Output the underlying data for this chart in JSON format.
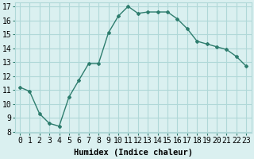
{
  "x": [
    0,
    1,
    2,
    3,
    4,
    5,
    6,
    7,
    8,
    9,
    10,
    11,
    12,
    13,
    14,
    15,
    16,
    17,
    18,
    19,
    20,
    21,
    22,
    23
  ],
  "y": [
    11.2,
    10.9,
    9.3,
    8.6,
    8.4,
    10.5,
    11.7,
    12.9,
    12.9,
    15.1,
    16.3,
    17.0,
    16.5,
    16.6,
    16.6,
    16.6,
    16.1,
    15.4,
    14.5,
    14.3,
    14.1,
    13.9,
    13.4,
    12.7
  ],
  "line_color": "#2e7d6e",
  "marker": "D",
  "marker_size": 2,
  "bg_color": "#daf0f0",
  "grid_color": "#b0d8d8",
  "xlabel": "Humidex (Indice chaleur)",
  "xlim_min": -0.5,
  "xlim_max": 23.5,
  "ylim_min": 7.9,
  "ylim_max": 17.3,
  "yticks": [
    8,
    9,
    10,
    11,
    12,
    13,
    14,
    15,
    16,
    17
  ],
  "xtick_labels": [
    "0",
    "1",
    "2",
    "3",
    "4",
    "5",
    "6",
    "7",
    "8",
    "9",
    "10",
    "11",
    "12",
    "13",
    "14",
    "15",
    "16",
    "17",
    "18",
    "19",
    "20",
    "21",
    "22",
    "23"
  ],
  "xlabel_fontsize": 7.5,
  "tick_fontsize": 7
}
